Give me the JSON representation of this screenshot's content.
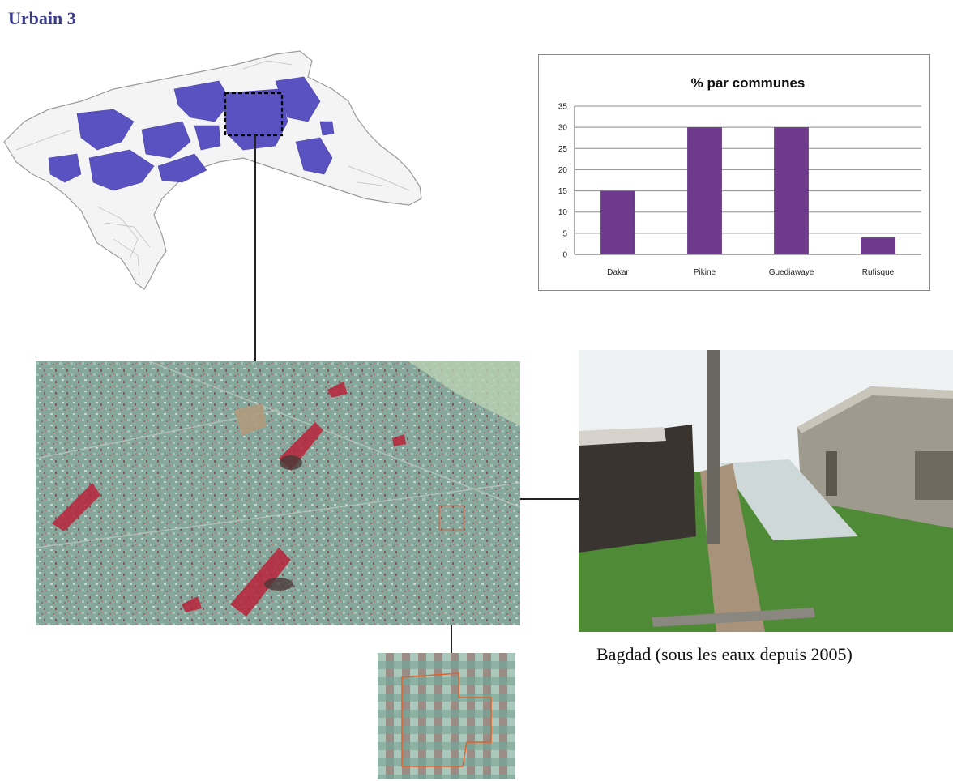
{
  "title": "Urbain 3",
  "caption": "Bagdad (sous les eaux depuis 2005)",
  "colors": {
    "title": "#3b3c8c",
    "bar": "#6e3a8c",
    "map_highlight": "#5a52c0",
    "map_outline": "#9a9a9a"
  },
  "chart_data": {
    "type": "bar",
    "title": "% par communes",
    "categories": [
      "Dakar",
      "Pikine",
      "Guediawaye",
      "Rufisque"
    ],
    "values": [
      15,
      30,
      30,
      4
    ],
    "ylim": [
      0,
      35
    ],
    "yticks": [
      "0",
      "5",
      "10",
      "15",
      "20",
      "25",
      "30",
      "35"
    ],
    "grid": true,
    "xlabel": "",
    "ylabel": ""
  }
}
